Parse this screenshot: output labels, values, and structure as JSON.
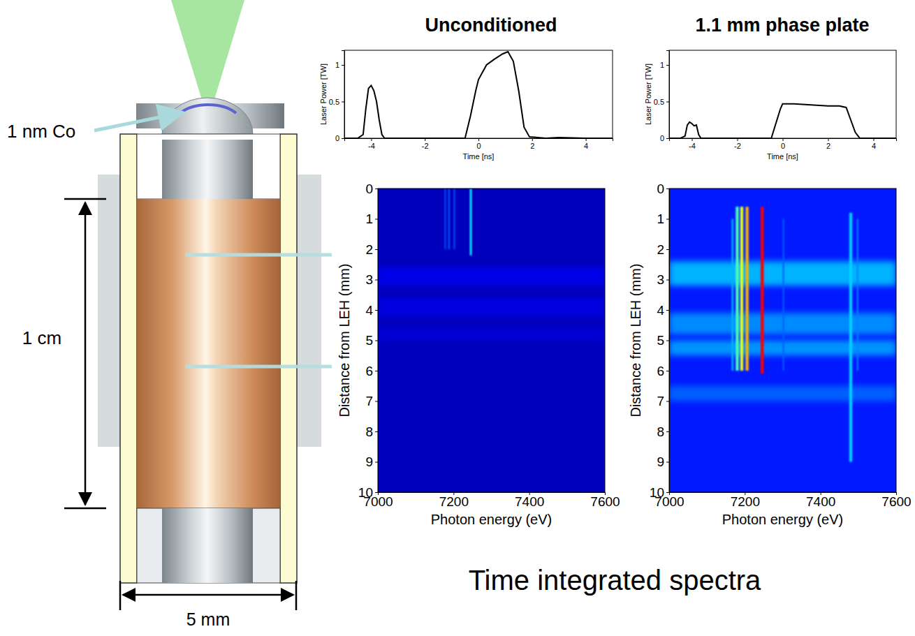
{
  "chart_data": [
    {
      "type": "line",
      "x_label": "Time [ns]",
      "y_label": "Laser Power [TW]",
      "x": [
        -5,
        -4.5,
        -4.3,
        -4.2,
        -4.1,
        -4.0,
        -3.9,
        -3.8,
        -3.7,
        -3.6,
        -3.5,
        -2,
        -0.5,
        -0.3,
        -0.1,
        0,
        0.3,
        0.6,
        0.9,
        1.1,
        1.3,
        1.5,
        1.7,
        1.9,
        2.5,
        3,
        4,
        5
      ],
      "values": [
        0,
        0,
        0.05,
        0.4,
        0.68,
        0.72,
        0.65,
        0.5,
        0.25,
        0.05,
        0,
        0,
        0,
        0.3,
        0.65,
        0.8,
        1.0,
        1.08,
        1.15,
        1.18,
        1.05,
        0.65,
        0.15,
        0.02,
        0,
        0.01,
        0,
        0
      ],
      "color": "#000000",
      "xlim": [
        -5,
        5
      ],
      "xticks": [
        -4,
        -2,
        0,
        2,
        4
      ],
      "ylim": [
        0,
        1.2
      ],
      "yticks": [
        0,
        0.5,
        1
      ]
    },
    {
      "type": "line",
      "x_label": "Time [ns]",
      "y_label": "Laser Power [TW]",
      "x": [
        -5,
        -4.5,
        -4.3,
        -4.2,
        -4.1,
        -4.0,
        -3.9,
        -3.8,
        -3.7,
        -3.6,
        -2,
        -0.5,
        -0.3,
        -0.1,
        0,
        0.5,
        1,
        1.5,
        2,
        2.5,
        2.8,
        3.0,
        3.2,
        3.4,
        4,
        5
      ],
      "values": [
        0,
        0,
        0.03,
        0.18,
        0.22,
        0.2,
        0.17,
        0.18,
        0.05,
        0,
        0,
        0,
        0.2,
        0.4,
        0.47,
        0.47,
        0.46,
        0.45,
        0.44,
        0.44,
        0.42,
        0.25,
        0.08,
        0,
        0,
        0
      ],
      "color": "#000000",
      "xlim": [
        -5,
        5
      ],
      "xticks": [
        -4,
        -2,
        0,
        2,
        4
      ],
      "ylim": [
        0,
        1.2
      ],
      "yticks": [
        0,
        0.5,
        1
      ]
    },
    {
      "type": "heatmap",
      "x_label": "Photon energy (eV)",
      "y_label": "Distance from LEH (mm)",
      "xlim": [
        7000,
        7600
      ],
      "xticks": [
        7000,
        7200,
        7400,
        7600
      ],
      "ylim": [
        10,
        0
      ],
      "yticks": [
        0,
        1,
        2,
        3,
        4,
        5,
        6,
        7,
        8,
        9,
        10
      ],
      "zlim": [
        0,
        1
      ],
      "background": 0.05,
      "bands": [
        {
          "y_range": [
            2.6,
            3.2
          ],
          "value": 0.1
        },
        {
          "y_range": [
            3.6,
            4.2
          ],
          "value": 0.09
        },
        {
          "y_range": [
            4.6,
            5.0
          ],
          "value": 0.08
        }
      ],
      "lines": [
        {
          "x_range": [
            7176,
            7180
          ],
          "y_range": [
            0,
            2.0
          ],
          "value": 0.2
        },
        {
          "x_range": [
            7186,
            7190
          ],
          "y_range": [
            0,
            2.0
          ],
          "value": 0.22
        },
        {
          "x_range": [
            7200,
            7204
          ],
          "y_range": [
            0,
            2.0
          ],
          "value": 0.2
        },
        {
          "x_range": [
            7243,
            7248
          ],
          "y_range": [
            0,
            2.2
          ],
          "value": 0.38
        }
      ]
    },
    {
      "type": "heatmap",
      "x_label": "Photon energy (eV)",
      "y_label": "Distance from LEH (mm)",
      "xlim": [
        7000,
        7600
      ],
      "xticks": [
        7000,
        7200,
        7400,
        7600
      ],
      "ylim": [
        10,
        0
      ],
      "yticks": [
        0,
        1,
        2,
        3,
        4,
        5,
        6,
        7,
        8,
        9,
        10
      ],
      "zlim": [
        0,
        1
      ],
      "background": 0.15,
      "bands": [
        {
          "y_range": [
            2.4,
            3.2
          ],
          "value": 0.3
        },
        {
          "y_range": [
            4.1,
            4.8
          ],
          "value": 0.26
        },
        {
          "y_range": [
            5.0,
            5.5
          ],
          "value": 0.27
        },
        {
          "y_range": [
            6.5,
            7.0
          ],
          "value": 0.22
        }
      ],
      "lines": [
        {
          "x_range": [
            7165,
            7170
          ],
          "y_range": [
            1,
            6
          ],
          "value": 0.3
        },
        {
          "x_range": [
            7176,
            7184
          ],
          "y_range": [
            0.6,
            6
          ],
          "value": 0.45
        },
        {
          "x_range": [
            7188,
            7196
          ],
          "y_range": [
            0.6,
            6
          ],
          "value": 0.6
        },
        {
          "x_range": [
            7202,
            7210
          ],
          "y_range": [
            0.6,
            6
          ],
          "value": 0.7
        },
        {
          "x_range": [
            7242,
            7250
          ],
          "y_range": [
            0.6,
            6.1
          ],
          "value": 0.88
        },
        {
          "x_range": [
            7300,
            7304
          ],
          "y_range": [
            1,
            6
          ],
          "value": 0.22
        },
        {
          "x_range": [
            7476,
            7484
          ],
          "y_range": [
            0.8,
            9
          ],
          "value": 0.33
        },
        {
          "x_range": [
            7496,
            7500
          ],
          "y_range": [
            1,
            6
          ],
          "value": 0.25
        }
      ]
    }
  ],
  "columns": [
    "Unconditioned",
    "1.1 mm phase plate"
  ],
  "diagram": {
    "coating_label": "1 nm Co",
    "length_label": "1 cm",
    "diameter_label": "5 mm"
  },
  "caption": "Time integrated spectra"
}
